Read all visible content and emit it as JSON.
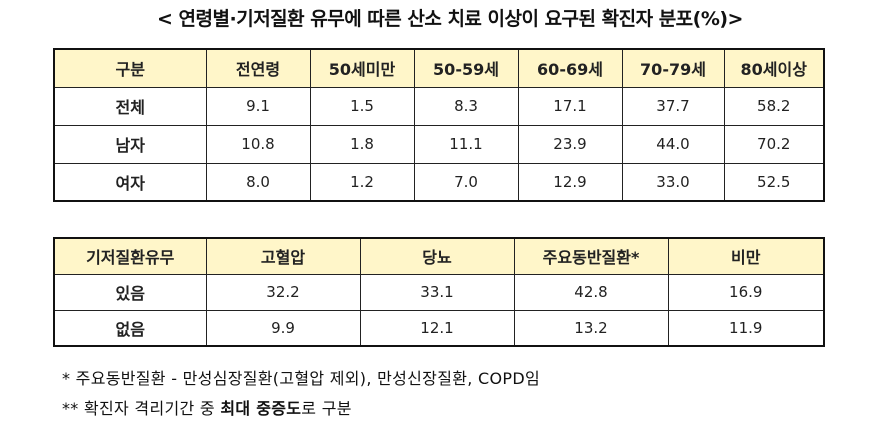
{
  "title": "< 연령별·기저질환 유무에 따른 산소 치료 이상이 요구된 확진자 분포(%)>",
  "age_table": {
    "headers": [
      "구분",
      "전연령",
      "50세미만",
      "50-59세",
      "60-69세",
      "70-79세",
      "80세이상"
    ],
    "rows": [
      {
        "label": "전체",
        "values": [
          "9.1",
          "1.5",
          "8.3",
          "17.1",
          "37.7",
          "58.2"
        ]
      },
      {
        "label": "남자",
        "values": [
          "10.8",
          "1.8",
          "11.1",
          "23.9",
          "44.0",
          "70.2"
        ]
      },
      {
        "label": "여자",
        "values": [
          "8.0",
          "1.2",
          "7.0",
          "12.9",
          "33.0",
          "52.5"
        ]
      }
    ]
  },
  "disease_table": {
    "headers": [
      "기저질환유무",
      "고혈압",
      "당뇨",
      "주요동반질환*",
      "비만"
    ],
    "rows": [
      {
        "label": "있음",
        "values": [
          "32.2",
          "33.1",
          "42.8",
          "16.9"
        ]
      },
      {
        "label": "없음",
        "values": [
          "9.9",
          "12.1",
          "13.2",
          "11.9"
        ]
      }
    ]
  },
  "notes": {
    "note1": "* 주요동반질환 - 만성심장질환(고혈압 제외), 만성신장질환, COPD임",
    "note2_prefix": "** 확진자 격리기간 중 ",
    "note2_bold": "최대 중증도",
    "note2_suffix": "로 구분"
  },
  "colors": {
    "header_bg": "#fff6c9",
    "border": "#222222"
  }
}
